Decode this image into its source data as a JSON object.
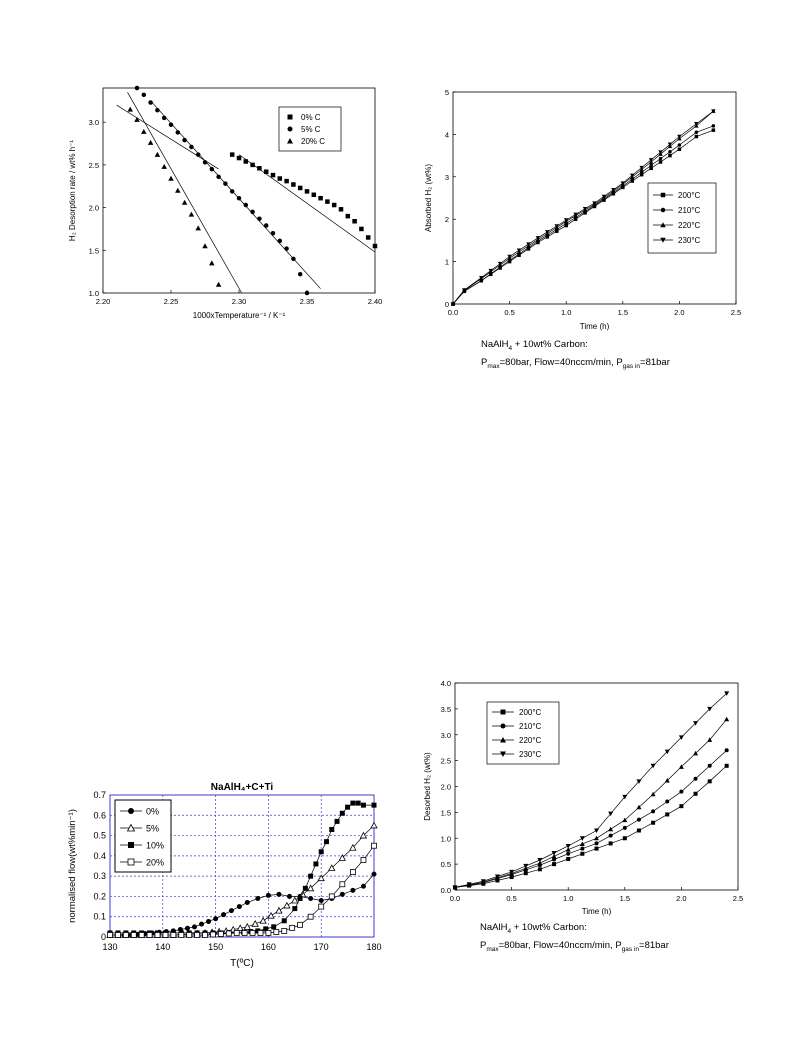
{
  "charts": [
    {
      "id": "c1",
      "box": {
        "x1": 103,
        "x2": 375,
        "y1": 88,
        "y2": 293
      },
      "xlim": [
        2.2,
        2.4
      ],
      "ylim": [
        1.0,
        3.4
      ],
      "xticks": [
        2.2,
        2.25,
        2.3,
        2.35,
        2.4
      ],
      "xtick_labels": [
        "2.20",
        "2.25",
        "2.30",
        "2.35",
        "2.40"
      ],
      "yticks": [
        1.0,
        1.5,
        2.0,
        2.5,
        3.0
      ],
      "ytick_labels": [
        "1.0",
        "1.5",
        "2.0",
        "2.5",
        "3.0"
      ],
      "xlabel": "1000xTemperature⁻¹ / K⁻¹",
      "ylabel": "H₂ Desorption rate / wt% h⁻¹",
      "legend": {
        "position": "top-right",
        "items": [
          "0% C",
          "5% C",
          "20% C"
        ]
      }
    },
    {
      "id": "c2",
      "box": {
        "x1": 453,
        "x2": 736,
        "y1": 92,
        "y2": 304
      },
      "xlim": [
        0,
        2.5
      ],
      "ylim": [
        0,
        5
      ],
      "xticks": [
        0,
        0.5,
        1.0,
        1.5,
        2.0,
        2.5
      ],
      "xtick_labels": [
        "0.0",
        "0.5",
        "1.0",
        "1.5",
        "2.0",
        "2.5"
      ],
      "yticks": [
        0,
        1,
        2,
        3,
        4,
        5
      ],
      "ytick_labels": [
        "0",
        "1",
        "2",
        "3",
        "4",
        "5"
      ],
      "xlabel": "Time (h)",
      "ylabel": "Absorbed H₂ (wt%)",
      "legend": {
        "position": "center-right",
        "items": [
          "200°C",
          "210°C",
          "220°C",
          "230°C"
        ]
      }
    },
    {
      "id": "c3",
      "box": {
        "x1": 110,
        "x2": 374,
        "y1": 795,
        "y2": 937
      },
      "xlim": [
        130,
        180
      ],
      "ylim": [
        0,
        0.7
      ],
      "xticks": [
        130,
        140,
        150,
        160,
        170,
        180
      ],
      "xtick_labels": [
        "130",
        "140",
        "150",
        "160",
        "170",
        "180"
      ],
      "yticks": [
        0,
        0.1,
        0.2,
        0.3,
        0.4,
        0.5,
        0.6,
        0.7
      ],
      "ytick_labels": [
        "0",
        "0.1",
        "0.2",
        "0.3",
        "0.4",
        "0.5",
        "0.6",
        "0.7"
      ],
      "title": "NaAlH₄+C+Ti",
      "xlabel": "T(ºC)",
      "ylabel": "normalised flow(wt%min⁻¹)",
      "legend": {
        "position": "top-left",
        "items": [
          "0%",
          "5%",
          "10%",
          "20%"
        ]
      },
      "grid_color": "#3b3bd6"
    },
    {
      "id": "c4",
      "box": {
        "x1": 455,
        "x2": 738,
        "y1": 683,
        "y2": 890
      },
      "xlim": [
        0,
        2.5
      ],
      "ylim": [
        0,
        4.0
      ],
      "xticks": [
        0,
        0.5,
        1.0,
        1.5,
        2.0,
        2.5
      ],
      "xtick_labels": [
        "0.0",
        "0.5",
        "1.0",
        "1.5",
        "2.0",
        "2.5"
      ],
      "yticks": [
        0,
        0.5,
        1.0,
        1.5,
        2.0,
        2.5,
        3.0,
        3.5,
        4.0
      ],
      "ytick_labels": [
        "0.0",
        "0.5",
        "1.0",
        "1.5",
        "2.0",
        "2.5",
        "3.0",
        "3.5",
        "4.0"
      ],
      "xlabel": "Time (h)",
      "ylabel": "Desorbed H₂ (wt%)",
      "legend": {
        "position": "top-left",
        "items": [
          "200°C",
          "210°C",
          "220°C",
          "230°C"
        ]
      }
    }
  ],
  "chart_data": [
    {
      "type": "scatter",
      "series": [
        {
          "name": "0% C",
          "marker": "square",
          "x": [
            2.295,
            2.3,
            2.305,
            2.31,
            2.315,
            2.32,
            2.325,
            2.33,
            2.335,
            2.34,
            2.345,
            2.35,
            2.355,
            2.36,
            2.365,
            2.37,
            2.375,
            2.38,
            2.385,
            2.39,
            2.395,
            2.4
          ],
          "y": [
            2.62,
            2.58,
            2.54,
            2.5,
            2.46,
            2.42,
            2.38,
            2.34,
            2.31,
            2.27,
            2.23,
            2.19,
            2.15,
            2.11,
            2.07,
            2.03,
            1.98,
            1.9,
            1.84,
            1.75,
            1.65,
            1.55
          ]
        },
        {
          "name": "5% C",
          "marker": "circle",
          "x": [
            2.225,
            2.23,
            2.235,
            2.24,
            2.245,
            2.25,
            2.255,
            2.26,
            2.265,
            2.27,
            2.275,
            2.28,
            2.285,
            2.29,
            2.295,
            2.3,
            2.305,
            2.31,
            2.315,
            2.32,
            2.325,
            2.33,
            2.335,
            2.34,
            2.345,
            2.35
          ],
          "y": [
            3.4,
            3.32,
            3.23,
            3.14,
            3.05,
            2.97,
            2.88,
            2.79,
            2.71,
            2.62,
            2.53,
            2.45,
            2.36,
            2.28,
            2.19,
            2.11,
            2.03,
            1.95,
            1.87,
            1.79,
            1.7,
            1.61,
            1.52,
            1.4,
            1.22,
            1.0
          ]
        },
        {
          "name": "20% C",
          "marker": "triangle",
          "x": [
            2.22,
            2.225,
            2.23,
            2.235,
            2.24,
            2.245,
            2.25,
            2.255,
            2.26,
            2.265,
            2.27,
            2.275,
            2.28,
            2.285
          ],
          "y": [
            3.15,
            3.03,
            2.89,
            2.76,
            2.62,
            2.48,
            2.34,
            2.2,
            2.06,
            1.92,
            1.76,
            1.55,
            1.35,
            1.1
          ]
        }
      ],
      "fit_lines": [
        {
          "x": [
            2.21,
            2.285
          ],
          "y": [
            3.2,
            2.45
          ]
        },
        {
          "x": [
            2.218,
            2.302
          ],
          "y": [
            3.35,
            1.0
          ]
        },
        {
          "x": [
            2.235,
            2.36
          ],
          "y": [
            3.25,
            1.05
          ]
        },
        {
          "x": [
            2.3,
            2.4
          ],
          "y": [
            2.62,
            1.48
          ]
        }
      ]
    },
    {
      "type": "line",
      "x": [
        0,
        0.1,
        0.25,
        0.5,
        0.75,
        1.0,
        1.25,
        1.5,
        1.75,
        2.0,
        2.15,
        2.3
      ],
      "series": [
        {
          "name": "200°C",
          "marker": "square",
          "values": [
            0,
            0.3,
            0.55,
            1.0,
            1.45,
            1.85,
            2.3,
            2.75,
            3.2,
            3.65,
            3.95,
            4.1
          ]
        },
        {
          "name": "210°C",
          "marker": "circle",
          "values": [
            0,
            0.3,
            0.55,
            1.03,
            1.48,
            1.9,
            2.32,
            2.78,
            3.27,
            3.75,
            4.05,
            4.2
          ]
        },
        {
          "name": "220°C",
          "marker": "triangle",
          "values": [
            0,
            0.32,
            0.6,
            1.08,
            1.52,
            1.95,
            2.35,
            2.82,
            3.35,
            3.9,
            4.2,
            4.55
          ]
        },
        {
          "name": "230°C",
          "marker": "triangle-down",
          "values": [
            0,
            0.33,
            0.62,
            1.12,
            1.56,
            1.98,
            2.38,
            2.85,
            3.4,
            3.95,
            4.25,
            4.55
          ]
        }
      ]
    },
    {
      "type": "line",
      "series": [
        {
          "name": "0%",
          "marker": "circle",
          "x": [
            130,
            134,
            138,
            142,
            146,
            150,
            153,
            156,
            158,
            160,
            162,
            164,
            166,
            168,
            170,
            172,
            174,
            176,
            178,
            180
          ],
          "y": [
            0.01,
            0.01,
            0.02,
            0.03,
            0.05,
            0.09,
            0.13,
            0.17,
            0.19,
            0.205,
            0.21,
            0.2,
            0.2,
            0.19,
            0.18,
            0.19,
            0.21,
            0.23,
            0.25,
            0.31
          ]
        },
        {
          "name": "5%",
          "marker": "triangle-open",
          "x": [
            130,
            136,
            142,
            148,
            152,
            156,
            159,
            162,
            165,
            168,
            170,
            172,
            174,
            176,
            178,
            180
          ],
          "y": [
            0.01,
            0.01,
            0.01,
            0.02,
            0.03,
            0.05,
            0.08,
            0.13,
            0.18,
            0.24,
            0.29,
            0.34,
            0.39,
            0.44,
            0.5,
            0.55
          ]
        },
        {
          "name": "10%",
          "marker": "square",
          "x": [
            130,
            136,
            142,
            148,
            154,
            158,
            161,
            163,
            165,
            166,
            167,
            168,
            169,
            170,
            171,
            172,
            173,
            174,
            175,
            176,
            177,
            178,
            180
          ],
          "y": [
            0.02,
            0.02,
            0.02,
            0.02,
            0.02,
            0.03,
            0.05,
            0.08,
            0.14,
            0.19,
            0.24,
            0.3,
            0.36,
            0.42,
            0.47,
            0.53,
            0.57,
            0.61,
            0.64,
            0.66,
            0.66,
            0.65,
            0.65
          ]
        },
        {
          "name": "20%",
          "marker": "square-open",
          "x": [
            130,
            136,
            142,
            148,
            154,
            160,
            163,
            166,
            168,
            170,
            172,
            174,
            176,
            178,
            180
          ],
          "y": [
            0.01,
            0.01,
            0.01,
            0.01,
            0.02,
            0.02,
            0.03,
            0.06,
            0.1,
            0.15,
            0.2,
            0.26,
            0.32,
            0.38,
            0.45
          ]
        }
      ]
    },
    {
      "type": "line",
      "x": [
        0,
        0.25,
        0.5,
        0.75,
        1.0,
        1.25,
        1.5,
        1.75,
        2.0,
        2.25,
        2.4
      ],
      "series": [
        {
          "name": "200°C",
          "marker": "square",
          "values": [
            0.05,
            0.12,
            0.25,
            0.4,
            0.6,
            0.8,
            1.0,
            1.3,
            1.62,
            2.1,
            2.4
          ]
        },
        {
          "name": "210°C",
          "marker": "circle",
          "values": [
            0.05,
            0.14,
            0.3,
            0.48,
            0.7,
            0.9,
            1.2,
            1.52,
            1.9,
            2.4,
            2.7
          ]
        },
        {
          "name": "220°C",
          "marker": "triangle",
          "values": [
            0.05,
            0.15,
            0.32,
            0.52,
            0.78,
            1.0,
            1.35,
            1.85,
            2.38,
            2.9,
            3.3
          ]
        },
        {
          "name": "230°C",
          "marker": "triangle-down",
          "values": [
            0.05,
            0.17,
            0.35,
            0.58,
            0.85,
            1.15,
            1.8,
            2.4,
            2.95,
            3.5,
            3.8
          ]
        }
      ]
    }
  ],
  "captions": {
    "c2": {
      "line1_a": "NaAlH",
      "line1_sub": "4",
      "line1_b": " + 10wt% Carbon:",
      "p1": "P",
      "p1_sub": "max",
      "p1_rest": "=80bar, Flow=40nccm/min, P",
      "p2_sub": "gas in",
      "p2_rest": "=81bar"
    },
    "c4": {
      "line1_a": "NaAlH",
      "line1_sub": "4",
      "line1_b": " + 10wt% Carbon:",
      "p1": "P",
      "p1_sub": "max",
      "p1_rest": "=80bar, Flow=40nccm/min, P",
      "p2_sub": "gas in",
      "p2_rest": "=81bar"
    }
  }
}
